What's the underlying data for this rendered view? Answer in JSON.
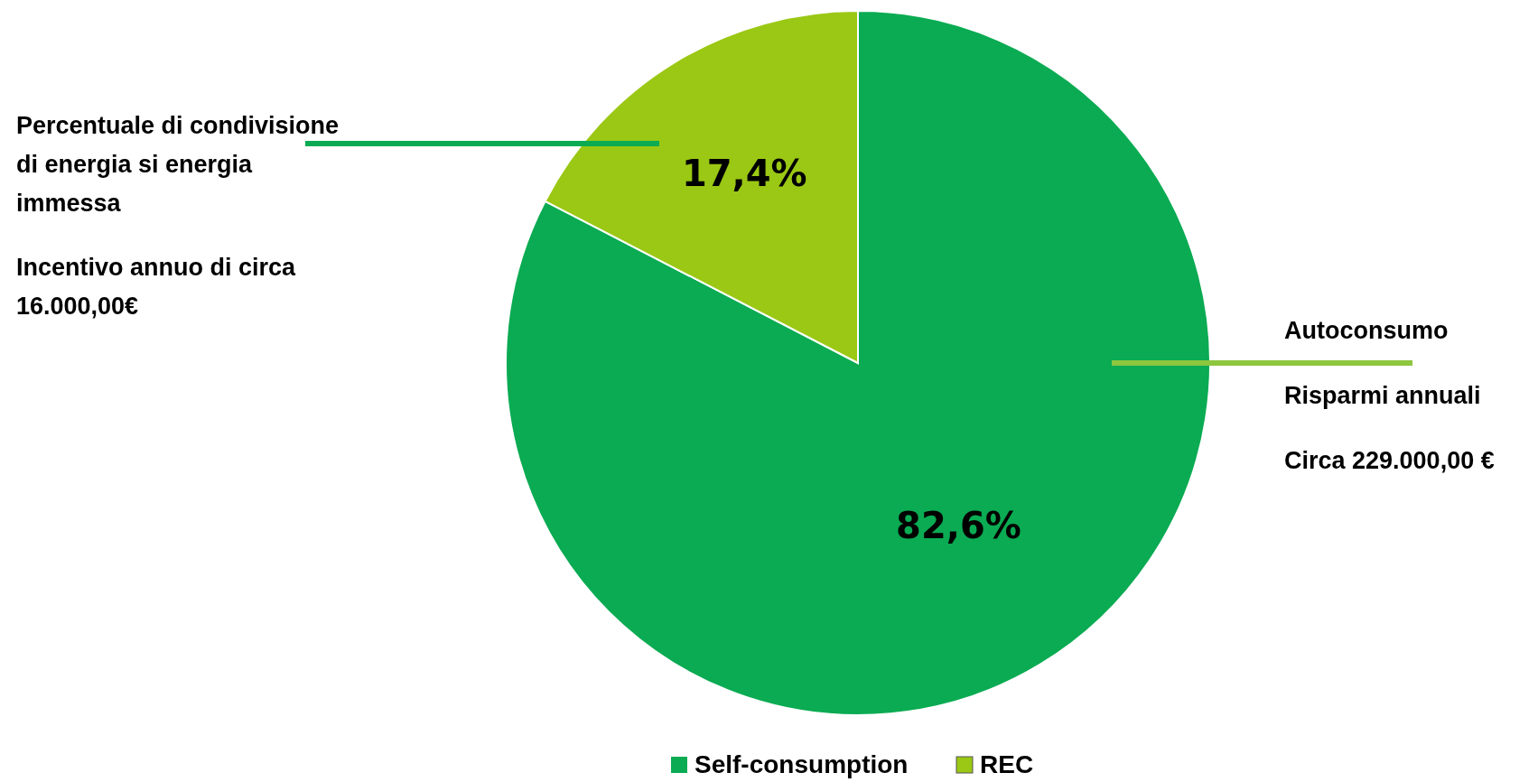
{
  "chart_data": {
    "type": "pie",
    "categories": [
      "Self-consumption",
      "REC"
    ],
    "values": [
      82.6,
      17.4
    ],
    "colors": [
      "#0aab52",
      "#9ac814"
    ],
    "value_labels": [
      "82,6%",
      "17,4%"
    ],
    "legend": "bottom",
    "annotations": [
      "Percentuale di condivisione di energia si energia immessa",
      "Incentivo annuo di circa 16.000,00€",
      "Autoconsumo",
      "Risparmi annuali",
      "Circa 229.000,00 €"
    ]
  }
}
